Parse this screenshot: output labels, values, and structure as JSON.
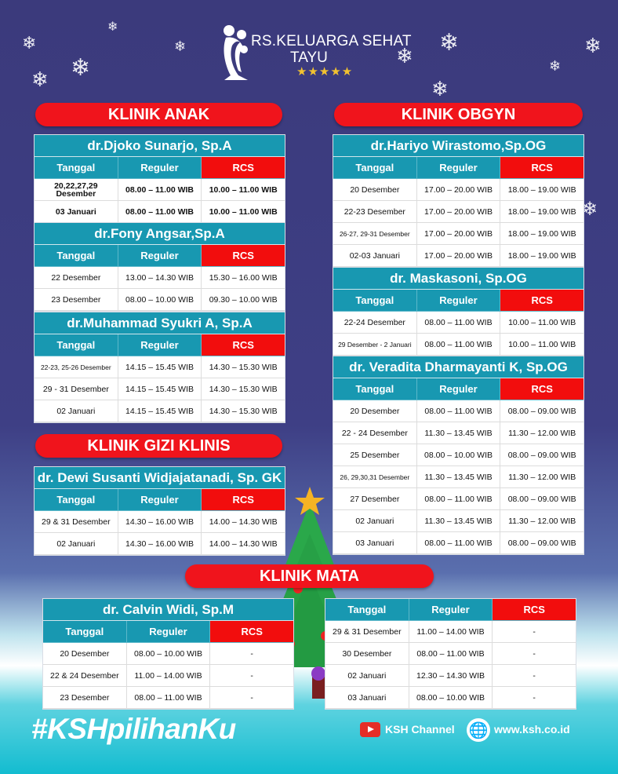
{
  "brand": {
    "name": "RS.KELUARGA SEHAT",
    "location": "TAYU",
    "stars": "★★★★★",
    "colors": {
      "banner": "#f0141c",
      "teal": "#1898b1",
      "rcs": "#f20d0d"
    }
  },
  "headers": [
    "Tanggal",
    "Reguler",
    "RCS"
  ],
  "clinics": [
    {
      "label": "KLINIK ANAK",
      "doctors": [
        {
          "name": "dr.Djoko Sunarjo, Sp.A",
          "rows": [
            [
              "20,22,27,29 Desember",
              "08.00 – 11.00 WIB",
              "10.00 – 11.00 WIB"
            ],
            [
              "03 Januari",
              "08.00 – 11.00 WIB",
              "10.00 – 11.00 WIB"
            ]
          ]
        },
        {
          "name": "dr.Fony Angsar,Sp.A",
          "rows": [
            [
              "22 Desember",
              "13.00 – 14.30 WIB",
              "15.30 – 16.00 WIB"
            ],
            [
              "23 Desember",
              "08.00 – 10.00 WIB",
              "09.30 – 10.00 WIB"
            ]
          ]
        },
        {
          "name": "dr.Muhammad Syukri A, Sp.A",
          "rows": [
            [
              "22-23, 25-26 Desember",
              "14.15 – 15.45 WIB",
              "14.30 – 15.30 WIB"
            ],
            [
              "29 - 31 Desember",
              "14.15 – 15.45 WIB",
              "14.30 – 15.30 WIB"
            ],
            [
              "02 Januari",
              "14.15 – 15.45 WIB",
              "14.30 – 15.30 WIB"
            ]
          ]
        }
      ]
    },
    {
      "label": "KLINIK OBGYN",
      "doctors": [
        {
          "name": "dr.Hariyo Wirastomo,Sp.OG",
          "rows": [
            [
              "20 Desember",
              "17.00 – 20.00 WIB",
              "18.00 – 19.00 WIB"
            ],
            [
              "22-23 Desember",
              "17.00 – 20.00 WIB",
              "18.00 – 19.00 WIB"
            ],
            [
              "26-27, 29-31 Desember",
              "17.00 – 20.00 WIB",
              "18.00 – 19.00 WIB"
            ],
            [
              "02-03 Januari",
              "17.00 – 20.00 WIB",
              "18.00 – 19.00 WIB"
            ]
          ]
        },
        {
          "name": "dr. Maskasoni, Sp.OG",
          "rows": [
            [
              "22-24 Desember",
              "08.00 – 11.00 WIB",
              "10.00 – 11.00 WIB"
            ],
            [
              "29 Desember - 2 Januari",
              "08.00 – 11.00 WIB",
              "10.00 – 11.00 WIB"
            ]
          ]
        },
        {
          "name": "dr. Veradita Dharmayanti K, Sp.OG",
          "rows": [
            [
              "20 Desember",
              "08.00 – 11.00 WIB",
              "08.00 – 09.00 WIB"
            ],
            [
              "22 - 24 Desember",
              "11.30 – 13.45 WIB",
              "11.30 – 12.00 WIB"
            ],
            [
              "25 Desember",
              "08.00 – 10.00 WIB",
              "08.00 – 09.00 WIB"
            ],
            [
              "26, 29,30,31 Desember",
              "11.30 – 13.45 WIB",
              "11.30 – 12.00 WIB"
            ],
            [
              "27 Desember",
              "08.00 – 11.00 WIB",
              "08.00 – 09.00 WIB"
            ],
            [
              "02 Januari",
              "11.30 – 13.45 WIB",
              "11.30 – 12.00 WIB"
            ],
            [
              "03 Januari",
              "08.00 – 11.00 WIB",
              "08.00 – 09.00 WIB"
            ]
          ]
        }
      ]
    },
    {
      "label": "KLINIK GIZI KLINIS",
      "doctors": [
        {
          "name": "dr. Dewi Susanti Widjajatanadi, Sp. GK",
          "rows": [
            [
              "29 & 31 Desember",
              "14.30 – 16.00 WIB",
              "14.00 – 14.30 WIB"
            ],
            [
              "02 Januari",
              "14.30 – 16.00 WIB",
              "14.00 – 14.30 WIB"
            ]
          ]
        }
      ]
    },
    {
      "label": "KLINIK MATA",
      "doctors": [
        {
          "name": "dr. Calvin Widi, Sp.M",
          "rows": [
            [
              "20 Desember",
              "08.00 – 10.00 WIB",
              "-"
            ],
            [
              "22 & 24 Desember",
              "11.00 – 14.00 WIB",
              "-"
            ],
            [
              "23 Desember",
              "08.00 – 11.00 WIB",
              "-"
            ]
          ]
        },
        {
          "name": "",
          "rows": [
            [
              "29 & 31 Desember",
              "11.00 – 14.00 WIB",
              "-"
            ],
            [
              "30 Desember",
              "08.00 – 11.00 WIB",
              "-"
            ],
            [
              "02 Januari",
              "12.30 – 14.30  WIB",
              "-"
            ],
            [
              "03 Januari",
              "08.00 – 10.00 WIB",
              "-"
            ]
          ]
        }
      ]
    }
  ],
  "footer": {
    "hashtag": "#KSHpilihanKu",
    "youtube": "KSH Channel",
    "website": "www.ksh.co.id"
  }
}
